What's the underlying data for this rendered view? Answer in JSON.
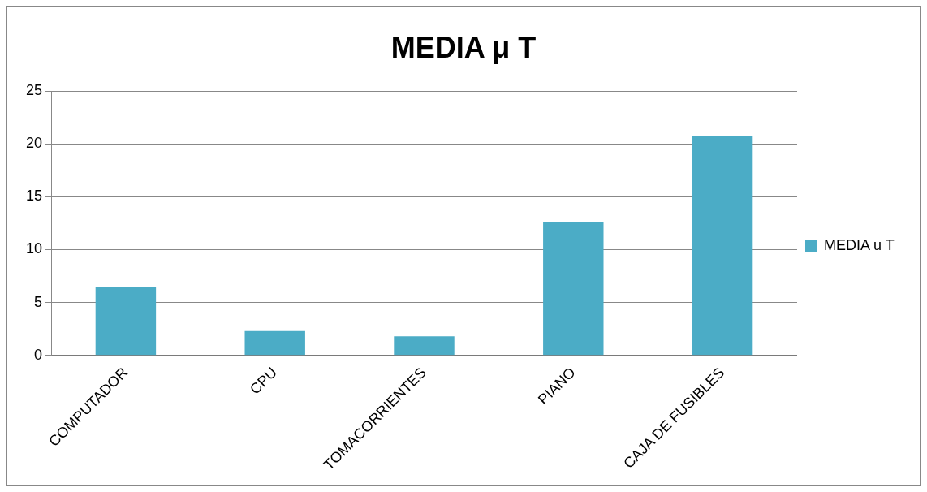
{
  "chart_data": {
    "type": "bar",
    "title": "MEDIA μ T",
    "categories": [
      "COMPUTADOR",
      "CPU",
      "TOMACORRIENTES",
      "PIANO",
      "CAJA DE FUSIBLES"
    ],
    "series": [
      {
        "name": "MEDIA u T",
        "color": "#4bacc6",
        "values": [
          6.5,
          2.3,
          1.8,
          12.6,
          20.8
        ]
      }
    ],
    "ylim": [
      0,
      25
    ],
    "yticks": [
      0,
      5,
      10,
      15,
      20,
      25
    ],
    "grid": "y",
    "legend": "right"
  }
}
